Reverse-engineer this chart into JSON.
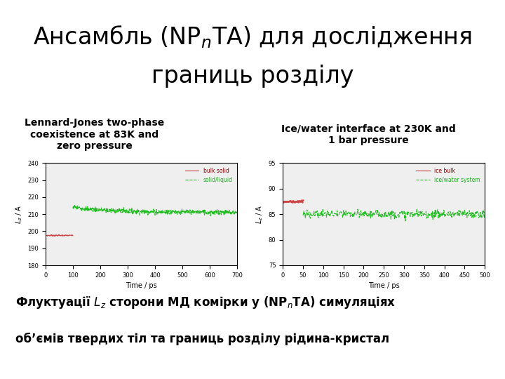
{
  "title_bg": "#c8f0f8",
  "bg_color": "#ffffff",
  "left_label": "Lennard-Jones two-phase\ncoexistence at 83K and\nzero pressure",
  "right_label": "Ice/water interface at 230K and\n1 bar pressure",
  "plot1": {
    "xlim": [
      0,
      700
    ],
    "ylim": [
      180,
      240
    ],
    "xticks": [
      0,
      100,
      200,
      300,
      400,
      500,
      600,
      700
    ],
    "yticks": [
      180,
      190,
      200,
      210,
      220,
      230,
      240
    ],
    "xlabel": "Time / ps",
    "ylabel": "Lz / A",
    "red_end_x": 100,
    "red_y_val": 197.5,
    "green_mean": 211.0,
    "green_noise": 0.7,
    "green_initial": 214.0,
    "legend_labels": [
      "bulk solid",
      "solid/liquid"
    ],
    "red_color": "#cc4444",
    "green_color": "#22bb22"
  },
  "plot2": {
    "xlim": [
      0,
      500
    ],
    "ylim": [
      75,
      95
    ],
    "xticks": [
      0,
      50,
      100,
      150,
      200,
      250,
      300,
      350,
      400,
      450,
      500
    ],
    "yticks": [
      75,
      80,
      85,
      90,
      95
    ],
    "xlabel": "Time / ps",
    "ylabel": "Lz / A",
    "red_end_x": 50,
    "red_y_val": 87.5,
    "green_mean": 85.0,
    "green_noise": 0.4,
    "legend_labels": [
      "ice bulk",
      "ice/water system"
    ],
    "red_color": "#cc4444",
    "green_color": "#22bb22"
  },
  "bottom_line1": "Флуктуації L",
  "bottom_line2": "об’ємів твердих тіл та границь розділу рідина-кристал"
}
